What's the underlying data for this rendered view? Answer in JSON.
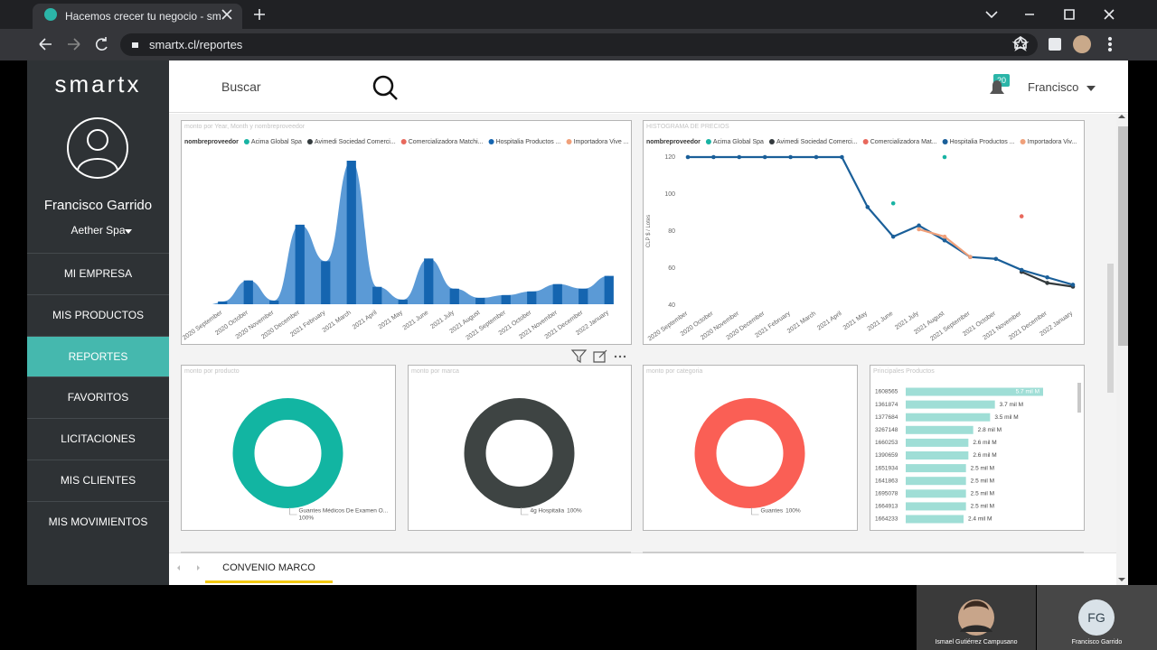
{
  "browser": {
    "tab_title": "Hacemos crecer tu negocio - sm",
    "url": "smartx.cl/reportes"
  },
  "sidebar": {
    "logo": "smartx",
    "user_name": "Francisco Garrido",
    "company": "Aether Spa",
    "menu": [
      {
        "label": "MI EMPRESA"
      },
      {
        "label": "MIS PRODUCTOS"
      },
      {
        "label": "REPORTES",
        "active": true
      },
      {
        "label": "FAVORITOS"
      },
      {
        "label": "LICITACIONES"
      },
      {
        "label": "MIS CLIENTES"
      },
      {
        "label": "MIS MOVIMIENTOS"
      }
    ]
  },
  "header": {
    "search": "Buscar",
    "notifications": 20,
    "user": "Francisco"
  },
  "chart_data": [
    {
      "type": "area",
      "title": "monto por Year, Month y nombreproveedor",
      "legend_title": "nombreproveedor",
      "categories": [
        "2020 September",
        "2020 October",
        "2020 November",
        "2020 December",
        "2021 February",
        "2021 March",
        "2021 April",
        "2021 May",
        "2021 June",
        "2021 July",
        "2021 August",
        "2021 September",
        "2021 October",
        "2021 November",
        "2021 December",
        "2022 January"
      ],
      "series": [
        {
          "name": "Acima Global Spa",
          "color": "#18b3a3"
        },
        {
          "name": "Avimedi Sociedad Comerci...",
          "color": "#333a3d"
        },
        {
          "name": "Comercializadora Matchi...",
          "color": "#e8685c"
        },
        {
          "name": "Hospitalia Productos ...",
          "color": "#1565b0",
          "fill": "#5b9ad6",
          "values": [
            3,
            26,
            4,
            87,
            47,
            157,
            19,
            5,
            50,
            17,
            7,
            10,
            14,
            22,
            17,
            31
          ]
        },
        {
          "name": "Importadora Vive ...",
          "color": "#f0a07a"
        }
      ]
    },
    {
      "type": "line",
      "title": "HISTOGRAMA DE PRECIOS",
      "legend_title": "nombreproveedor",
      "y_label": "CLP $ / Lotes",
      "categories": [
        "2020 September",
        "2020 October",
        "2020 November",
        "2020 December",
        "2021 February",
        "2021 March",
        "2021 April",
        "2021 May",
        "2021 June",
        "2021 July",
        "2021 August",
        "2021 September",
        "2021 October",
        "2021 November",
        "2021 December",
        "2022 January"
      ],
      "ylim": [
        40,
        120
      ],
      "yticks": [
        40,
        60,
        80,
        100,
        120
      ],
      "series": [
        {
          "name": "Acima Global Spa",
          "color": "#18b3a3",
          "values": [
            null,
            null,
            null,
            null,
            null,
            null,
            null,
            null,
            95,
            null,
            120,
            null,
            null,
            null,
            null,
            null
          ]
        },
        {
          "name": "Avimedi Sociedad Comerci...",
          "color": "#333a3d",
          "values": [
            null,
            null,
            null,
            null,
            null,
            null,
            null,
            null,
            null,
            null,
            null,
            null,
            null,
            58,
            52,
            50
          ]
        },
        {
          "name": "Comercializadora Mat...",
          "color": "#e8685c",
          "values": [
            null,
            null,
            null,
            null,
            null,
            null,
            null,
            null,
            null,
            null,
            null,
            null,
            null,
            88,
            null,
            null
          ]
        },
        {
          "name": "Hospitalia Productos ...",
          "color": "#1a5f99",
          "values": [
            120,
            120,
            120,
            120,
            120,
            120,
            120,
            93,
            77,
            83,
            75,
            66,
            65,
            59,
            55,
            51
          ]
        },
        {
          "name": "Importadora Viv...",
          "color": "#f0a07a",
          "values": [
            null,
            null,
            null,
            null,
            null,
            null,
            null,
            null,
            null,
            81,
            77,
            66,
            null,
            null,
            null,
            null
          ]
        }
      ]
    },
    {
      "type": "pie",
      "title": "monto por producto",
      "categories": [
        "Guantes Médicos De Examen O..."
      ],
      "values": [
        100
      ],
      "value_labels": [
        "100%"
      ],
      "color": "#12b5a2"
    },
    {
      "type": "pie",
      "title": "monto por marca",
      "categories": [
        "4g Hospitalia"
      ],
      "values": [
        100
      ],
      "value_labels": [
        "100%"
      ],
      "color": "#3e4443"
    },
    {
      "type": "pie",
      "title": "monto por categoria",
      "categories": [
        "Guantes"
      ],
      "values": [
        100
      ],
      "value_labels": [
        "100%"
      ],
      "color": "#fa5f55"
    },
    {
      "type": "hbar",
      "title": "Principales Productos",
      "categories": [
        "1608565",
        "1361874",
        "1377684",
        "3267148",
        "1660253",
        "1390659",
        "1651934",
        "1641863",
        "1695078",
        "1664913",
        "1664233"
      ],
      "values": [
        5.7,
        3.7,
        3.5,
        2.8,
        2.6,
        2.6,
        2.5,
        2.5,
        2.5,
        2.5,
        2.4
      ],
      "value_labels": [
        "5.7 mil M",
        "3.7 mil M",
        "3.5 mil M",
        "2.8 mil M",
        "2.6 mil M",
        "2.6 mil M",
        "2.5 mil M",
        "2.5 mil M",
        "2.5 mil M",
        "2.5 mil M",
        "2.4 mil M"
      ],
      "color": "#9fded6"
    }
  ],
  "tabs": [
    "CONVENIO MARCO"
  ],
  "call": {
    "participants": [
      {
        "name": "Ismael Gutiérrez Campusano"
      },
      {
        "name": "Francisco Garrido",
        "initials": "FG"
      }
    ]
  }
}
